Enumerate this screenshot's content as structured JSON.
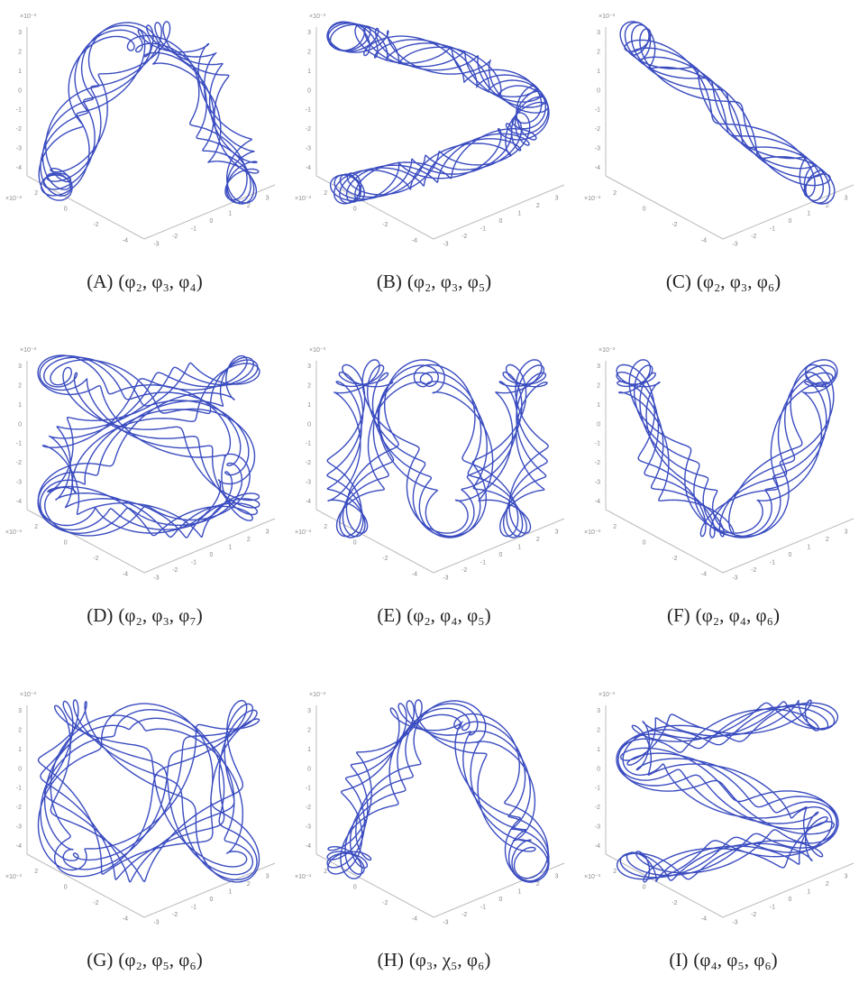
{
  "axes": {
    "scale": "×10⁻³",
    "zticks": [
      "3",
      "2",
      "1",
      "0",
      "-1",
      "-2",
      "-3",
      "-4"
    ],
    "xticks": [
      "2",
      "0",
      "-2",
      "-4"
    ],
    "yticks": [
      "-3",
      "-2",
      "-1",
      "0",
      "1",
      "2",
      "3"
    ]
  },
  "panels": [
    {
      "label": "(A)",
      "caption": "(φ₂, φ₃, φ₄)"
    },
    {
      "label": "(B)",
      "caption": "(φ₂, φ₃, φ₅)"
    },
    {
      "label": "(C)",
      "caption": "(φ₂, φ₃, φ₆)"
    },
    {
      "label": "(D)",
      "caption": "(φ₂, φ₃, φ₇)"
    },
    {
      "label": "(E)",
      "caption": "(φ₂, φ₄, φ₅)"
    },
    {
      "label": "(F)",
      "caption": "(φ₂, φ₄, φ₆)"
    },
    {
      "label": "(G)",
      "caption": "(φ₂, φ₅, φ₆)"
    },
    {
      "label": "(H)",
      "caption": "(φ₃, χ₅, φ₆)"
    },
    {
      "label": "(I)",
      "caption": "(φ₄, φ₅, φ₆)"
    }
  ]
}
